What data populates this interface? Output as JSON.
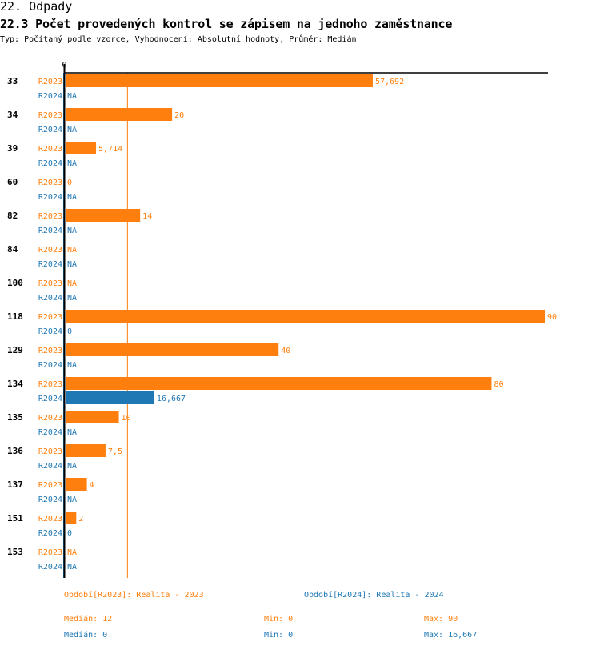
{
  "header": {
    "section_title": "22. Odpady",
    "chart_title": "22.3 Počet provedených kontrol se zápisem na jednoho zaměstnance",
    "meta": "Typ: Počítaný podle vzorce, Vyhodnocení: Absolutní hodnoty, Průměr: Medián"
  },
  "chart_data": {
    "type": "bar",
    "orientation": "horizontal",
    "title": "22.3 Počet provedených kontrol se zápisem na jednoho zaměstnance",
    "xlabel": "",
    "ylabel": "",
    "xlim": [
      0,
      90
    ],
    "x_tick_labels": [
      "0"
    ],
    "grid": false,
    "legend_position": "bottom",
    "categories": [
      "33",
      "34",
      "39",
      "60",
      "82",
      "84",
      "100",
      "118",
      "129",
      "134",
      "135",
      "136",
      "137",
      "151",
      "153"
    ],
    "series": [
      {
        "name": "R2023",
        "color": "#ff7f0e",
        "values": [
          57.692,
          20,
          5.714,
          0,
          14,
          null,
          null,
          90,
          40,
          80,
          10,
          7.5,
          4,
          2,
          null
        ],
        "labels": [
          "57,692",
          "20",
          "5,714",
          "0",
          "14",
          "NA",
          "NA",
          "90",
          "40",
          "80",
          "10",
          "7,5",
          "4",
          "2",
          "NA"
        ]
      },
      {
        "name": "R2024",
        "color": "#1f77b4",
        "values": [
          null,
          null,
          null,
          null,
          null,
          null,
          null,
          0,
          null,
          16.667,
          null,
          null,
          null,
          0,
          null
        ],
        "labels": [
          "NA",
          "NA",
          "NA",
          "NA",
          "NA",
          "NA",
          "NA",
          "0",
          "NA",
          "16,667",
          "NA",
          "NA",
          "NA",
          "0",
          "NA"
        ]
      }
    ],
    "reference_lines": [
      {
        "series": "R2023",
        "type": "median",
        "value": 12,
        "color": "#ff7f0e"
      },
      {
        "series": "R2024",
        "type": "median",
        "value": 0,
        "color": "#1f77b4"
      }
    ]
  },
  "legend": {
    "r2023": {
      "title": "Období[R2023]: Realita - 2023",
      "median": "Medián: 12",
      "min": "Min: 0",
      "max": "Max: 90"
    },
    "r2024": {
      "title": "Období[R2024]: Realita - 2024",
      "median": "Medián: 0",
      "min": "Min: 0",
      "max": "Max: 16,667"
    }
  }
}
